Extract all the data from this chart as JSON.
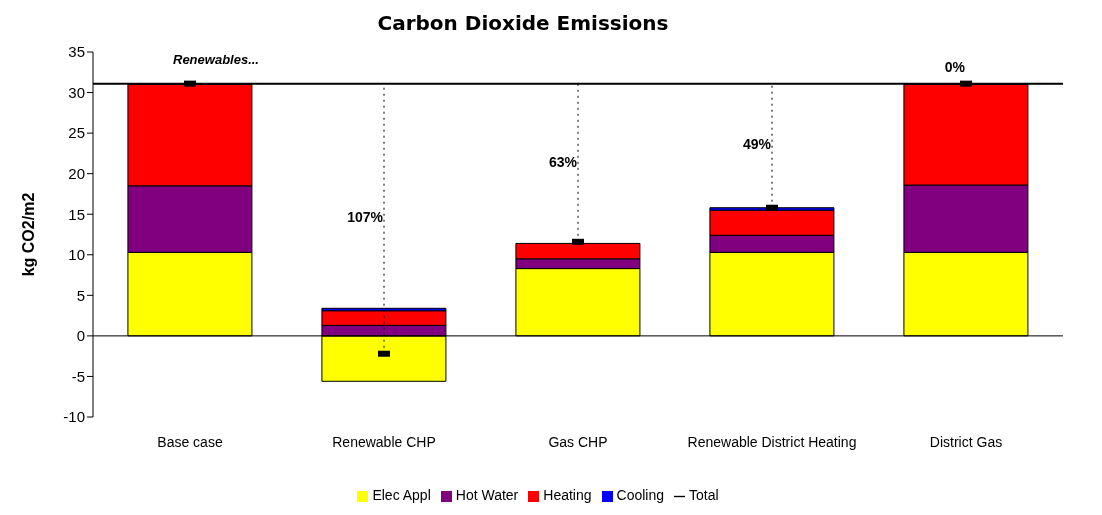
{
  "chart_data": {
    "type": "bar",
    "title": "Carbon Dioxide Emissions",
    "ylabel": "kg CO2/m2",
    "categories": [
      "Base case",
      "Renewable CHP",
      "Gas CHP",
      "Renewable District Heating",
      "District Gas"
    ],
    "stacked": true,
    "series": [
      {
        "name": "Elec Appl",
        "color": "#ffff00",
        "values": [
          10.3,
          -5.6,
          8.3,
          10.3,
          10.3
        ]
      },
      {
        "name": "Hot Water",
        "color": "#800080",
        "values": [
          8.2,
          1.3,
          1.2,
          2.1,
          8.3
        ]
      },
      {
        "name": "Heating",
        "color": "#ff0000",
        "values": [
          12.5,
          1.8,
          1.9,
          3.1,
          12.4
        ]
      },
      {
        "name": "Cooling",
        "color": "#0000ff",
        "values": [
          null,
          0.3,
          null,
          0.3,
          null
        ]
      },
      {
        "name": "Total",
        "type": "scatter",
        "color": "#000000",
        "values": [
          31.1,
          -2.2,
          11.6,
          15.8,
          31.1
        ],
        "errors": [
          null,
          [
            -2.2,
            31.1
          ],
          [
            11.6,
            31.1
          ],
          [
            15.8,
            31.1
          ],
          null
        ]
      }
    ],
    "ylim": [
      -10,
      35
    ],
    "yticks": [
      -10,
      -5,
      0,
      5,
      10,
      15,
      20,
      25,
      30,
      35
    ],
    "ref_lines": [
      {
        "axis": "y",
        "value": 31.1,
        "label": "Renewables...",
        "color": "#000000"
      }
    ],
    "annotations": [
      {
        "text": "107%",
        "x": "Renewable CHP",
        "y": 14.6
      },
      {
        "text": "63%",
        "x": "Gas CHP",
        "y": 21.5
      },
      {
        "text": "49%",
        "x": "Renewable District Heating",
        "y": 23.6
      },
      {
        "text": "0%",
        "x": "District Gas",
        "y": 31.1
      }
    ],
    "grid": false,
    "legend": "bottom"
  }
}
